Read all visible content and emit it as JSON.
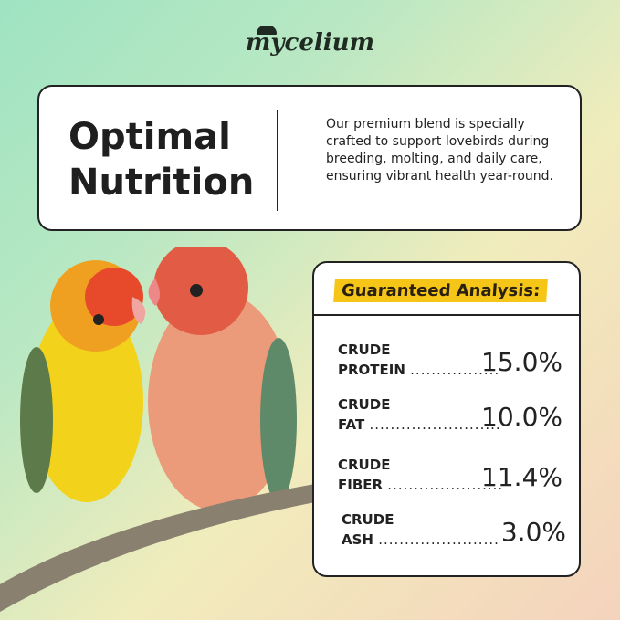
{
  "brand": {
    "logo": "mycelium"
  },
  "intro": {
    "title_line1": "Optimal",
    "title_line2": "Nutrition",
    "description": "Our premium blend is specially crafted to support lovebirds during breeding, molting, and daily care, ensuring vibrant health year-round."
  },
  "analysis": {
    "heading": "Guaranteed Analysis:",
    "accent": "#f5c518",
    "rows": [
      {
        "line1": "CRUDE",
        "line2": "PROTEIN",
        "dots": ".................",
        "value": "15.0%"
      },
      {
        "line1": "CRUDE",
        "line2": "FAT",
        "dots": ".........................",
        "value": "10.0%"
      },
      {
        "line1": "CRUDE",
        "line2": "FIBER",
        "dots": "......................",
        "value": "11.4%"
      },
      {
        "line1": "CRUDE",
        "line2": "ASH",
        "dots": ".......................",
        "value": "3.0%"
      }
    ]
  }
}
